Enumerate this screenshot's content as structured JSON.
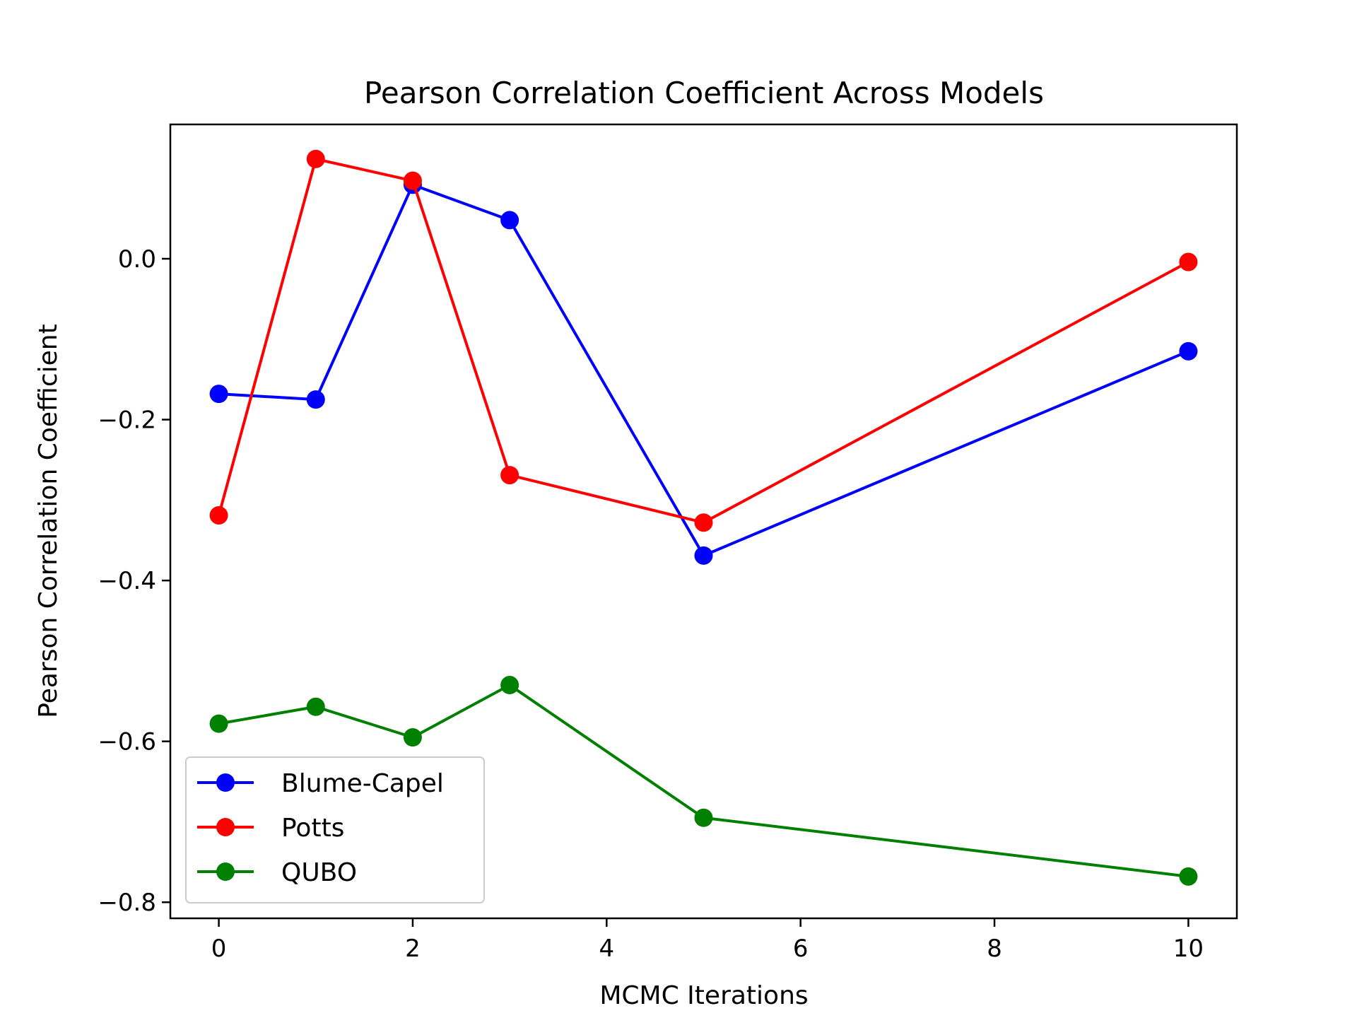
{
  "chart_data": {
    "type": "line",
    "title": "Pearson Correlation Coefficient Across Models",
    "xlabel": "MCMC Iterations",
    "ylabel": "Pearson Correlation Coefficient",
    "x": [
      0,
      1,
      2,
      3,
      5,
      10
    ],
    "xlim": [
      -0.5,
      10.5
    ],
    "ylim": [
      -0.82,
      0.167
    ],
    "xticks": [
      0,
      2,
      4,
      6,
      8,
      10
    ],
    "xtick_labels": [
      "0",
      "2",
      "4",
      "6",
      "8",
      "10"
    ],
    "yticks": [
      0.0,
      -0.2,
      -0.4,
      -0.6,
      -0.8
    ],
    "ytick_labels": [
      "0.0",
      "−0.2",
      "−0.4",
      "−0.6",
      "−0.8"
    ],
    "grid": false,
    "legend_position": "lower-left",
    "series": [
      {
        "name": "Blume-Capel",
        "color": "#0000ff",
        "marker": "circle",
        "values": [
          -0.168,
          -0.175,
          0.092,
          0.048,
          -0.369,
          -0.115
        ]
      },
      {
        "name": "Potts",
        "color": "#ff0000",
        "marker": "circle",
        "values": [
          -0.319,
          0.124,
          0.097,
          -0.269,
          -0.328,
          -0.004
        ]
      },
      {
        "name": "QUBO",
        "color": "#008000",
        "marker": "circle",
        "values": [
          -0.578,
          -0.557,
          -0.595,
          -0.53,
          -0.695,
          -0.768
        ]
      }
    ]
  }
}
